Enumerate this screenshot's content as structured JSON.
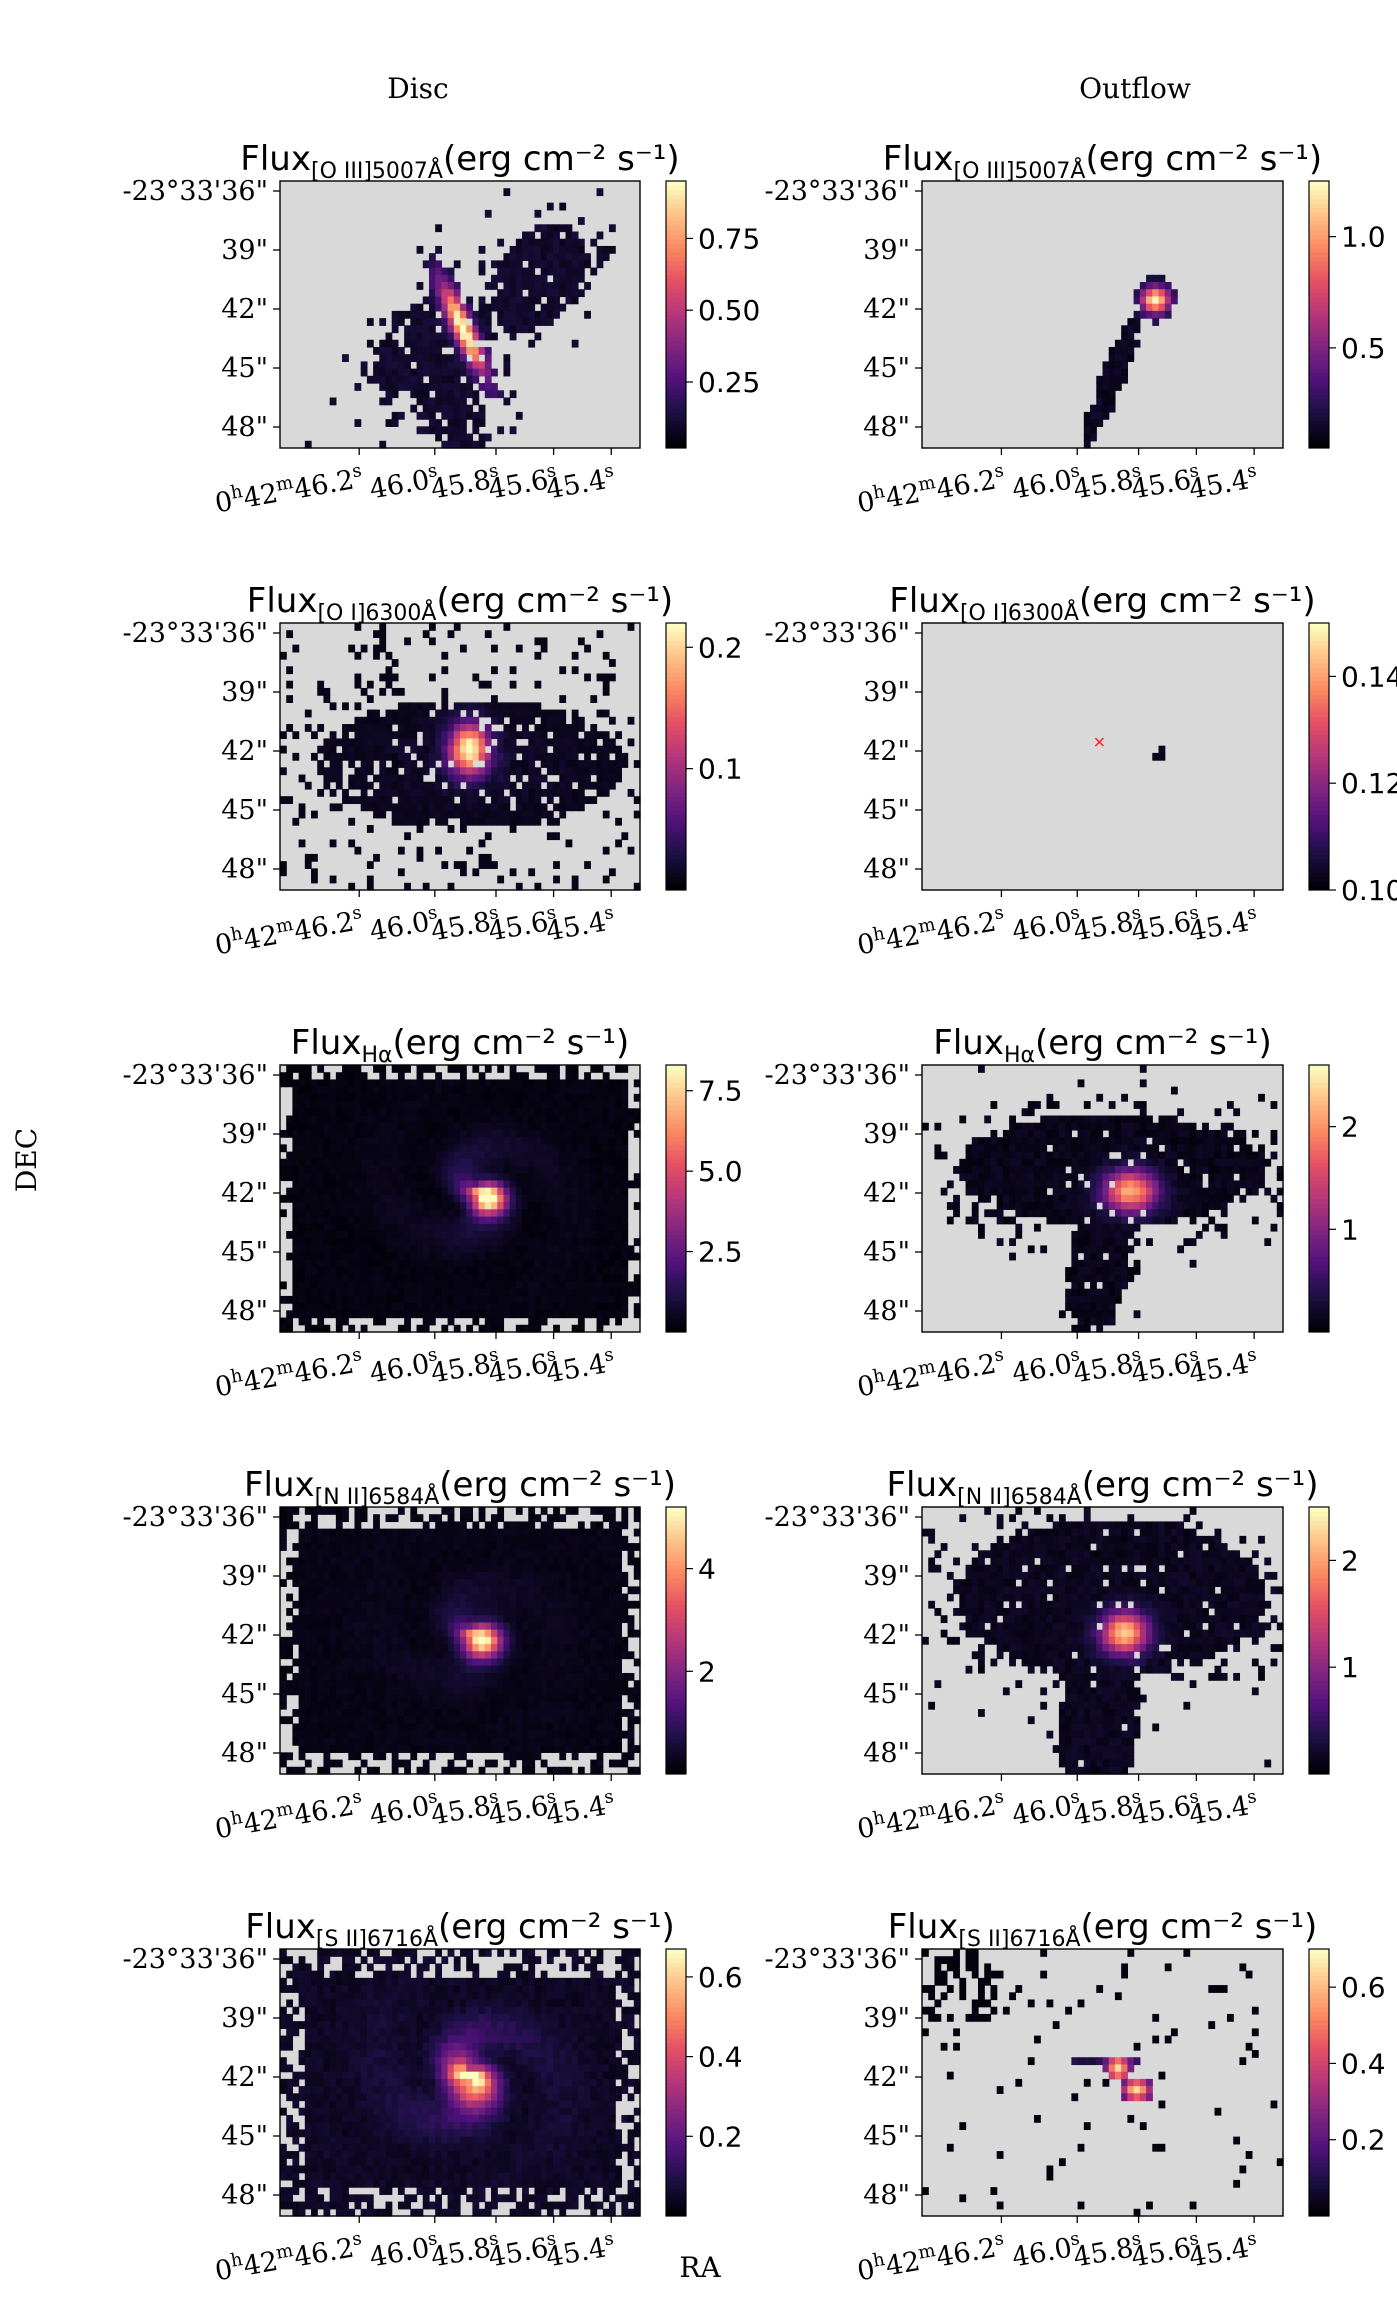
{
  "figure": {
    "columns": [
      "Disc",
      "Outflow"
    ],
    "ylabel": "DEC",
    "xlabel": "RA"
  },
  "axes": {
    "yticks": [
      "-23°33'36\"",
      "39\"",
      "42\"",
      "45\"",
      "48\""
    ],
    "xticks": [
      {
        "main": "0",
        "sup1": "h",
        "mid": "42",
        "sup2": "m",
        "tail": "46.2",
        "sup3": "s"
      },
      {
        "main": "46.0",
        "sup1": "s"
      },
      {
        "main": "45.8",
        "sup1": "s"
      },
      {
        "main": "45.6",
        "sup1": "s"
      },
      {
        "main": "45.4",
        "sup1": "s"
      }
    ]
  },
  "colors": {
    "background": "#d9d9d9",
    "colormap": "magma"
  },
  "chart_data": [
    {
      "type": "heatmap",
      "panel": "disc-oiii",
      "column": "Disc",
      "title": "Flux",
      "sub": "[O III]5007Å",
      "units": "(erg cm⁻² s⁻¹)",
      "cmin": 0.02,
      "cmax": 0.95,
      "ticks": [
        0.25,
        0.5,
        0.75
      ],
      "tickLabels": [
        "0.25",
        "0.50",
        "0.75"
      ],
      "pattern": "disc_oiii"
    },
    {
      "type": "heatmap",
      "panel": "outflow-oiii",
      "column": "Outflow",
      "title": "Flux",
      "sub": "[O III]5007Å",
      "units": "(erg cm⁻² s⁻¹)",
      "cmin": 0.05,
      "cmax": 1.25,
      "ticks": [
        0.5,
        1.0
      ],
      "tickLabels": [
        "0.5",
        "1.0"
      ],
      "pattern": "out_oiii"
    },
    {
      "type": "heatmap",
      "panel": "disc-oi",
      "column": "Disc",
      "title": "Flux",
      "sub": "[O I]6300Å",
      "units": "(erg cm⁻² s⁻¹)",
      "cmin": 0.0,
      "cmax": 0.22,
      "ticks": [
        0.1,
        0.2
      ],
      "tickLabels": [
        "0.1",
        "0.2"
      ],
      "pattern": "disc_oi"
    },
    {
      "type": "heatmap",
      "panel": "outflow-oi",
      "column": "Outflow",
      "title": "Flux",
      "sub": "[O I]6300Å",
      "units": "(erg cm⁻² s⁻¹)",
      "cmin": 0.1,
      "cmax": 0.15,
      "ticks": [
        0.1,
        0.12,
        0.14
      ],
      "tickLabels": [
        "0.10",
        "0.12",
        "0.14"
      ],
      "pattern": "out_oi"
    },
    {
      "type": "heatmap",
      "panel": "disc-ha",
      "column": "Disc",
      "title": "Flux",
      "sub": "Hα",
      "units": "(erg cm⁻² s⁻¹)",
      "cmin": 0.0,
      "cmax": 8.3,
      "ticks": [
        2.5,
        5.0,
        7.5
      ],
      "tickLabels": [
        "2.5",
        "5.0",
        "7.5"
      ],
      "pattern": "disc_ha"
    },
    {
      "type": "heatmap",
      "panel": "outflow-ha",
      "column": "Outflow",
      "title": "Flux",
      "sub": "Hα",
      "units": "(erg cm⁻² s⁻¹)",
      "cmin": 0.0,
      "cmax": 2.6,
      "ticks": [
        1,
        2
      ],
      "tickLabels": [
        "1",
        "2"
      ],
      "pattern": "out_ha"
    },
    {
      "type": "heatmap",
      "panel": "disc-nii",
      "column": "Disc",
      "title": "Flux",
      "sub": "[N II]6584Å",
      "units": "(erg cm⁻² s⁻¹)",
      "cmin": 0.0,
      "cmax": 5.2,
      "ticks": [
        2,
        4
      ],
      "tickLabels": [
        "2",
        "4"
      ],
      "pattern": "disc_nii"
    },
    {
      "type": "heatmap",
      "panel": "outflow-nii",
      "column": "Outflow",
      "title": "Flux",
      "sub": "[N II]6584Å",
      "units": "(erg cm⁻² s⁻¹)",
      "cmin": 0.0,
      "cmax": 2.5,
      "ticks": [
        1,
        2
      ],
      "tickLabels": [
        "1",
        "2"
      ],
      "pattern": "out_nii"
    },
    {
      "type": "heatmap",
      "panel": "disc-sii",
      "column": "Disc",
      "title": "Flux",
      "sub": "[S II]6716Å",
      "units": "(erg cm⁻² s⁻¹)",
      "cmin": 0.0,
      "cmax": 0.67,
      "ticks": [
        0.2,
        0.4,
        0.6
      ],
      "tickLabels": [
        "0.2",
        "0.4",
        "0.6"
      ],
      "pattern": "disc_sii"
    },
    {
      "type": "heatmap",
      "panel": "outflow-sii",
      "column": "Outflow",
      "title": "Flux",
      "sub": "[S II]6716Å",
      "units": "(erg cm⁻² s⁻¹)",
      "cmin": 0.0,
      "cmax": 0.7,
      "ticks": [
        0.2,
        0.4,
        0.6
      ],
      "tickLabels": [
        "0.2",
        "0.4",
        "0.6"
      ],
      "pattern": "out_sii"
    }
  ]
}
